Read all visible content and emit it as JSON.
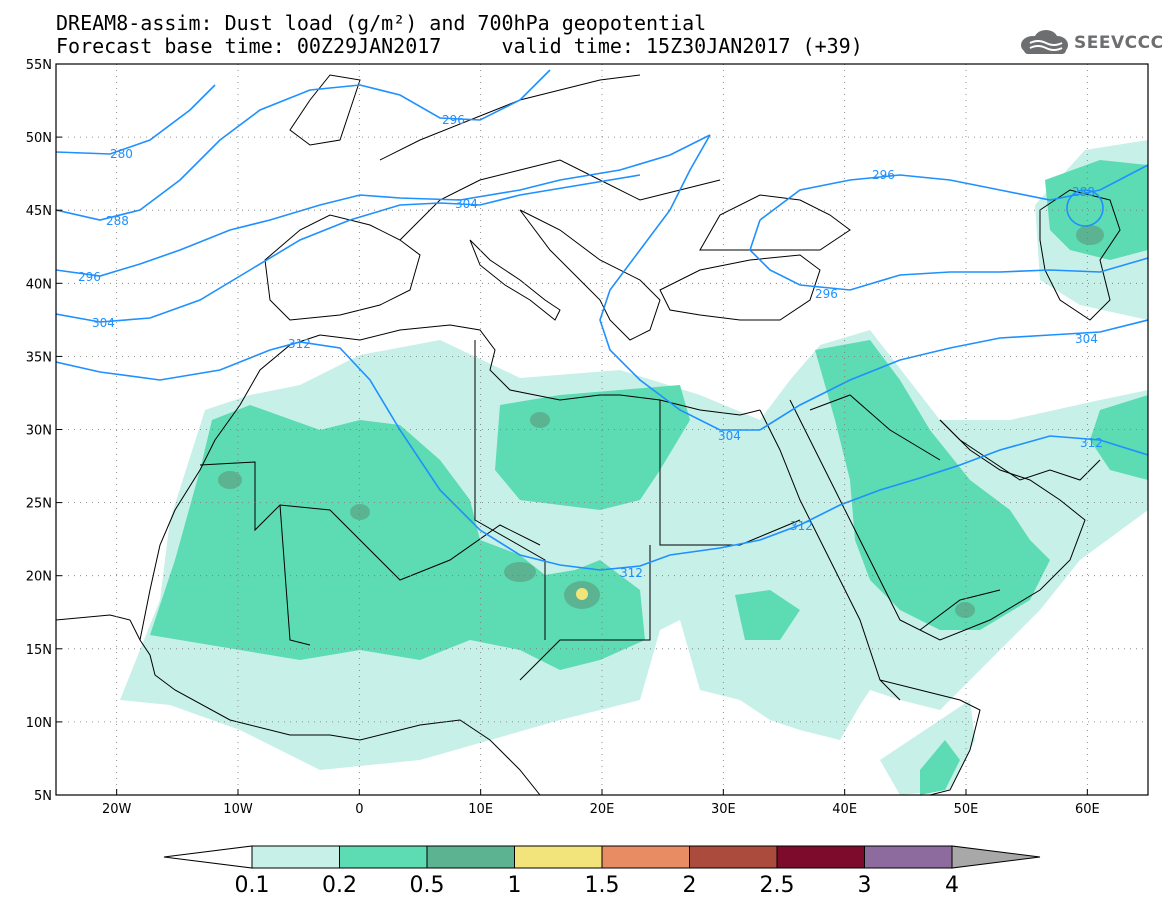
{
  "header": {
    "title_line1": "DREAM8-assim: Dust load (g/m²) and 700hPa geopotential",
    "title_line2": "Forecast base time: 00Z29JAN2017     valid time: 15Z30JAN2017 (+39)"
  },
  "logo": {
    "text": "SEEVCCC",
    "icon": "cloud-icon",
    "color": "#6d6e70"
  },
  "map": {
    "lon_range": [
      -25,
      65
    ],
    "lat_range": [
      5,
      55
    ],
    "lon_ticks": [
      {
        "value": -20,
        "label": "20W"
      },
      {
        "value": -10,
        "label": "10W"
      },
      {
        "value": 0,
        "label": "0"
      },
      {
        "value": 10,
        "label": "10E"
      },
      {
        "value": 20,
        "label": "20E"
      },
      {
        "value": 30,
        "label": "30E"
      },
      {
        "value": 40,
        "label": "40E"
      },
      {
        "value": 50,
        "label": "50E"
      },
      {
        "value": 60,
        "label": "60E"
      }
    ],
    "lat_ticks": [
      {
        "value": 55,
        "label": "55N"
      },
      {
        "value": 50,
        "label": "50N"
      },
      {
        "value": 45,
        "label": "45N"
      },
      {
        "value": 40,
        "label": "40N"
      },
      {
        "value": 35,
        "label": "35N"
      },
      {
        "value": 30,
        "label": "30N"
      },
      {
        "value": 25,
        "label": "25N"
      },
      {
        "value": 20,
        "label": "20N"
      },
      {
        "value": 15,
        "label": "15N"
      },
      {
        "value": 10,
        "label": "10N"
      },
      {
        "value": 5,
        "label": "5N"
      }
    ],
    "gridlines": "dotted",
    "contour_color": "#1e90ff",
    "contour_labels": [
      "280",
      "288",
      "296",
      "296",
      "296",
      "296",
      "304",
      "304",
      "304",
      "304",
      "312",
      "312",
      "312",
      "312",
      "288"
    ]
  },
  "colorbar": {
    "labels": [
      "0.1",
      "0.2",
      "0.5",
      "1",
      "1.5",
      "2",
      "2.5",
      "3",
      "4"
    ],
    "colors": [
      "#c6f0e8",
      "#5ddbb2",
      "#5bb391",
      "#f2e37a",
      "#e88c64",
      "#aa4b3d",
      "#7d0b2b",
      "#8d6b9e",
      "#a8a8a8"
    ],
    "under_color": "#ffffff"
  }
}
